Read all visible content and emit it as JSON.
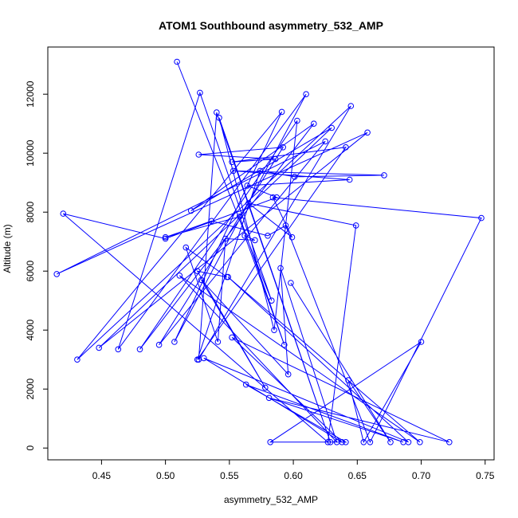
{
  "chart_data": {
    "type": "scatter",
    "title": "ATOM1 Southbound asymmetry_532_AMP",
    "xlabel": "asymmetry_532_AMP",
    "ylabel": "Altitude (m)",
    "xlim": [
      0.408,
      0.757
    ],
    "ylim": [
      -400,
      13600
    ],
    "xticks": [
      0.45,
      0.5,
      0.55,
      0.6,
      0.65,
      0.7,
      0.75
    ],
    "xtick_labels": [
      "0.45",
      "0.50",
      "0.55",
      "0.60",
      "0.65",
      "0.70",
      "0.75"
    ],
    "yticks": [
      0,
      2000,
      4000,
      6000,
      8000,
      10000,
      12000
    ],
    "ytick_labels": [
      "0",
      "2000",
      "4000",
      "6000",
      "8000",
      "10000",
      "12000"
    ],
    "grid": false,
    "series": [
      {
        "color": "#0000ff",
        "style": "line+open-circle",
        "points": [
          [
            0.509,
            13100
          ],
          [
            0.583,
            5000
          ],
          [
            0.527,
            12050
          ],
          [
            0.463,
            3350
          ],
          [
            0.61,
            12000
          ],
          [
            0.507,
            3600
          ],
          [
            0.591,
            11400
          ],
          [
            0.431,
            3000
          ],
          [
            0.645,
            11600
          ],
          [
            0.526,
            3000
          ],
          [
            0.54,
            11380
          ],
          [
            0.629,
            200
          ],
          [
            0.542,
            11200
          ],
          [
            0.585,
            4000
          ],
          [
            0.603,
            11100
          ],
          [
            0.48,
            3350
          ],
          [
            0.616,
            11000
          ],
          [
            0.52,
            8050
          ],
          [
            0.63,
            10860
          ],
          [
            0.448,
            3400
          ],
          [
            0.658,
            10700
          ],
          [
            0.415,
            5900
          ],
          [
            0.625,
            10400
          ],
          [
            0.495,
            3500
          ],
          [
            0.592,
            10200
          ],
          [
            0.526,
            9950
          ],
          [
            0.586,
            9800
          ],
          [
            0.552,
            9700
          ],
          [
            0.641,
            10200
          ],
          [
            0.525,
            3000
          ],
          [
            0.574,
            9400
          ],
          [
            0.601,
            9200
          ],
          [
            0.671,
            9250
          ],
          [
            0.553,
            9400
          ],
          [
            0.644,
            9100
          ],
          [
            0.564,
            8900
          ],
          [
            0.587,
            8500
          ],
          [
            0.5,
            7100
          ],
          [
            0.42,
            7950
          ],
          [
            0.627,
            200
          ],
          [
            0.649,
            7550
          ],
          [
            0.565,
            8300
          ],
          [
            0.599,
            7150
          ],
          [
            0.584,
            8500
          ],
          [
            0.747,
            7800
          ],
          [
            0.66,
            200
          ],
          [
            0.594,
            7550
          ],
          [
            0.58,
            7200
          ],
          [
            0.536,
            7700
          ],
          [
            0.5,
            7150
          ],
          [
            0.558,
            7850
          ],
          [
            0.593,
            3500
          ],
          [
            0.562,
            7200
          ],
          [
            0.57,
            7050
          ],
          [
            0.547,
            7100
          ],
          [
            0.541,
            3600
          ],
          [
            0.516,
            6800
          ],
          [
            0.548,
            5800
          ],
          [
            0.525,
            6000
          ],
          [
            0.578,
            2050
          ],
          [
            0.528,
            5700
          ],
          [
            0.596,
            2500
          ],
          [
            0.59,
            6100
          ],
          [
            0.634,
            200
          ],
          [
            0.511,
            5850
          ],
          [
            0.699,
            200
          ],
          [
            0.549,
            5800
          ],
          [
            0.69,
            200
          ],
          [
            0.53,
            3050
          ],
          [
            0.638,
            200
          ],
          [
            0.552,
            3750
          ],
          [
            0.722,
            200
          ],
          [
            0.581,
            1700
          ],
          [
            0.686,
            200
          ],
          [
            0.563,
            2150
          ],
          [
            0.641,
            200
          ],
          [
            0.582,
            200
          ],
          [
            0.7,
            3600
          ],
          [
            0.655,
            200
          ],
          [
            0.643,
            2300
          ],
          [
            0.676,
            200
          ],
          [
            0.598,
            5600
          ]
        ]
      }
    ]
  }
}
